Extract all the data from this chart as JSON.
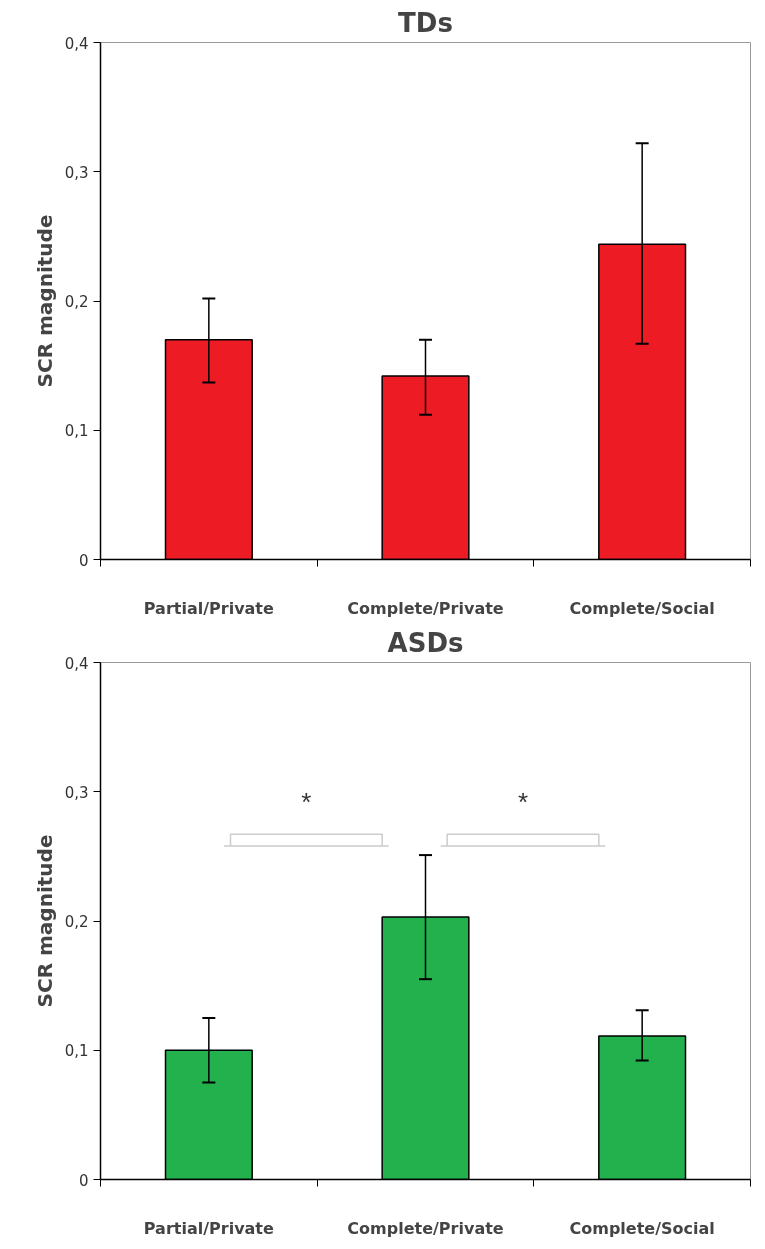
{
  "chart_data": [
    {
      "type": "bar",
      "title": "TDs",
      "ylabel": "SCR magnitude",
      "categories": [
        "Partial/Private",
        "Complete/Private",
        "Complete/Social"
      ],
      "series": [
        {
          "color": "#ed1c24",
          "values": [
            0.17,
            0.142,
            0.244
          ],
          "errors": [
            [
              0.137,
              0.202
            ],
            [
              0.112,
              0.17
            ],
            [
              0.167,
              0.322
            ]
          ]
        }
      ],
      "ylim": [
        0,
        0.4
      ],
      "yticks": [
        0,
        {
          "value": 0.1,
          "label": "0,1"
        },
        {
          "value": 0.2,
          "label": "0,2"
        },
        {
          "value": 0.3,
          "label": "0,3"
        },
        {
          "value": 0.4,
          "label": "0,4"
        }
      ],
      "grid": false
    },
    {
      "type": "bar",
      "title": "ASDs",
      "ylabel": "SCR magnitude",
      "categories": [
        "Partial/Private",
        "Complete/Private",
        "Complete/Social"
      ],
      "series": [
        {
          "color": "#22b14c",
          "values": [
            0.1,
            0.203,
            0.111
          ],
          "errors": [
            [
              0.075,
              0.125
            ],
            [
              0.155,
              0.251
            ],
            [
              0.092,
              0.131
            ]
          ]
        }
      ],
      "ylim": [
        0,
        0.4
      ],
      "yticks": [
        0,
        {
          "value": 0.1,
          "label": "0,1"
        },
        {
          "value": 0.2,
          "label": "0,2"
        },
        {
          "value": 0.3,
          "label": "0,3"
        },
        {
          "value": 0.4,
          "label": "0,4"
        }
      ],
      "grid": false,
      "annotations": [
        "*",
        "*"
      ]
    }
  ]
}
